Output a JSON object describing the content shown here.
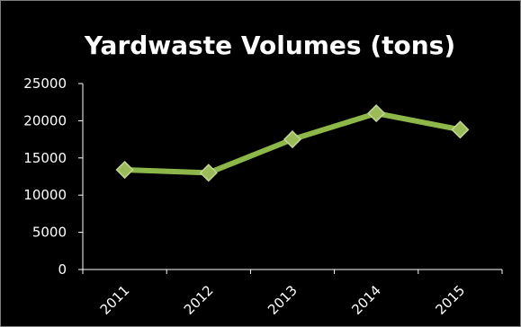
{
  "chart_data": {
    "type": "line",
    "title": "Yardwaste Volumes (tons)",
    "xlabel": "",
    "ylabel": "",
    "categories": [
      "2011",
      "2012",
      "2013",
      "2014",
      "2015"
    ],
    "series": [
      {
        "values": [
          13400,
          13000,
          17500,
          21000,
          18800
        ]
      }
    ],
    "ylim": [
      0,
      25000
    ],
    "yticks": [
      0,
      5000,
      10000,
      15000,
      20000,
      25000
    ],
    "grid": true,
    "legend": "none",
    "colors": {
      "background": "#000000",
      "line": "#8db849",
      "marker_fill": "#9bbb59",
      "marker_edge": "#c3d69b",
      "text": "#ffffff",
      "axis": "#ffffff"
    }
  }
}
